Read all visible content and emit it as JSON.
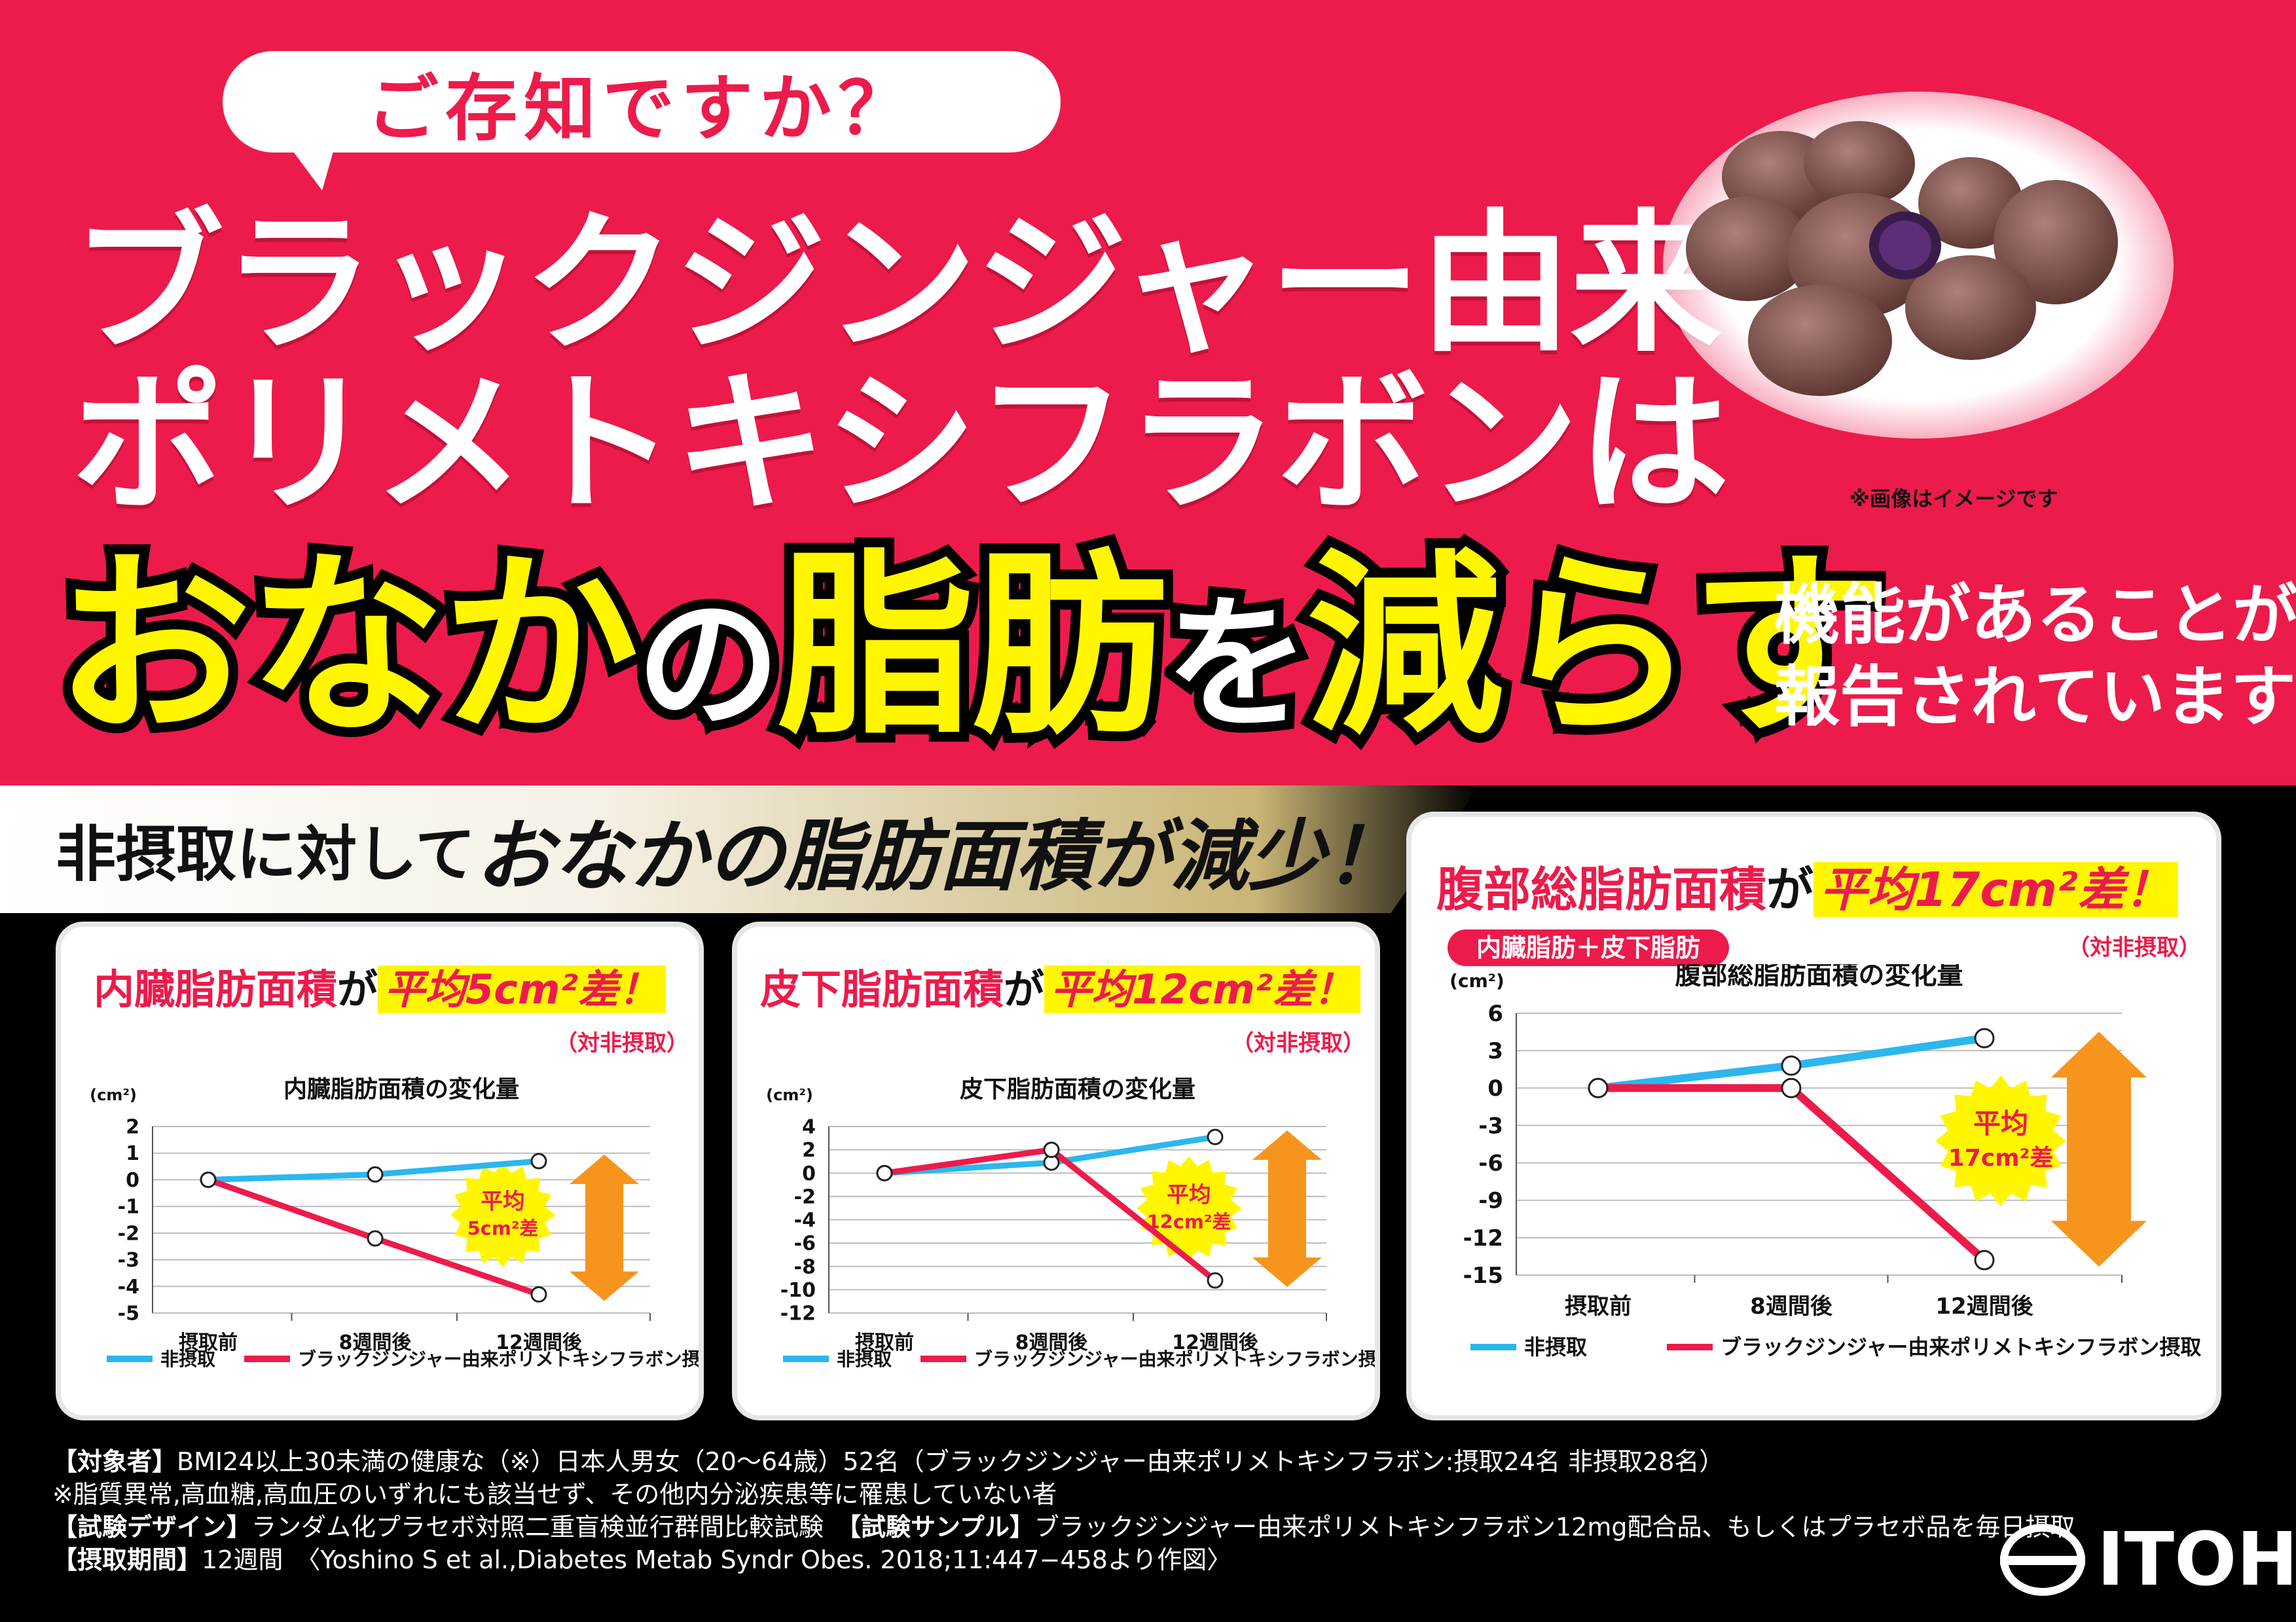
{
  "header": {
    "bubble": "ご存知ですか？",
    "line1": "ブラックジンジャー由来",
    "line2": "ポリメトキシフラボンは",
    "big_a": "おなか",
    "big_b": "の",
    "big_c": "脂肪",
    "big_d": "を",
    "big_e": "減らす",
    "side1": "機能があることが",
    "side2": "報告されています!!",
    "image_note": "※画像はイメージです"
  },
  "banner": {
    "small1": "非摂取に対して",
    "large": "おなかの脂肪面積",
    "small2": "が減少！"
  },
  "panels": [
    {
      "t1": "内臓脂肪面積",
      "t2": "が",
      "t3": "平均5cm²差！",
      "vs": "（対非摂取）"
    },
    {
      "t1": "皮下脂肪面積",
      "t2": "が",
      "t3": "平均12cm²差！",
      "vs": "（対非摂取）"
    },
    {
      "t1": "腹部総脂肪面積",
      "t2": "が",
      "t3": "平均17cm²差！",
      "vs": "（対非摂取）",
      "pill": "内臓脂肪＋皮下脂肪"
    }
  ],
  "chart_data": [
    {
      "type": "line",
      "title": "内臓脂肪面積の変化量",
      "ylabel": "(cm²)",
      "categories": [
        "摂取前",
        "8週間後",
        "12週間後"
      ],
      "ylim": [
        -5,
        2
      ],
      "yticks": [
        2,
        1,
        0,
        -1,
        -2,
        -3,
        -4,
        -5
      ],
      "series": [
        {
          "name": "非摂取",
          "color": "#2bb7ee",
          "values": [
            0,
            0.2,
            0.7
          ]
        },
        {
          "name": "ブラックジンジャー由来ポリメトキシフラボン摂取",
          "color": "#ec1b4b",
          "values": [
            0,
            -2.2,
            -4.3
          ]
        }
      ],
      "badge": [
        "平均",
        "5cm²差"
      ]
    },
    {
      "type": "line",
      "title": "皮下脂肪面積の変化量",
      "ylabel": "(cm²)",
      "categories": [
        "摂取前",
        "8週間後",
        "12週間後"
      ],
      "ylim": [
        -12,
        4
      ],
      "yticks": [
        4,
        2,
        0,
        -2,
        -4,
        -6,
        -8,
        -10,
        -12
      ],
      "series": [
        {
          "name": "非摂取",
          "color": "#2bb7ee",
          "values": [
            0,
            0.9,
            3.1
          ]
        },
        {
          "name": "ブラックジンジャー由来ポリメトキシフラボン摂取",
          "color": "#ec1b4b",
          "values": [
            0,
            2,
            -9.2
          ]
        }
      ],
      "badge": [
        "平均",
        "12cm²差"
      ]
    },
    {
      "type": "line",
      "title": "腹部総脂肪面積の変化量",
      "ylabel": "(cm²)",
      "categories": [
        "摂取前",
        "8週間後",
        "12週間後"
      ],
      "ylim": [
        -15,
        6
      ],
      "yticks": [
        6,
        3,
        0,
        -3,
        -6,
        -9,
        -12,
        -15
      ],
      "series": [
        {
          "name": "非摂取",
          "color": "#2bb7ee",
          "values": [
            0,
            1.8,
            4
          ]
        },
        {
          "name": "ブラックジンジャー由来ポリメトキシフラボン摂取",
          "color": "#ec1b4b",
          "values": [
            0,
            0,
            -13.8
          ]
        }
      ],
      "badge": [
        "平均",
        "17cm²差"
      ]
    }
  ],
  "footer": {
    "l1a": "【対象者】",
    "l1b": "BMI24以上30未満の健康な（※）日本人男女（20～64歳）52名（ブラックジンジャー由来ポリメトキシフラボン:摂取24名 非摂取28名）",
    "l2": "※脂質異常,高血糖,高血圧のいずれにも該当せず、その他内分泌疾患等に罹患していない者",
    "l3a": "【試験デザイン】",
    "l3b": "ランダム化プラセボ対照二重盲検並行群間比較試験　",
    "l3c": "【試験サンプル】",
    "l3d": "ブラックジンジャー由来ポリメトキシフラボン12mg配合品、もしくはプラセボ品を毎日摂取",
    "l4a": "【摂取期間】",
    "l4b": "12週間　〈Yoshino S et al.,Diabetes Metab Syndr Obes. 2018;11:447−458より作図〉",
    "logo": "ITOH"
  }
}
